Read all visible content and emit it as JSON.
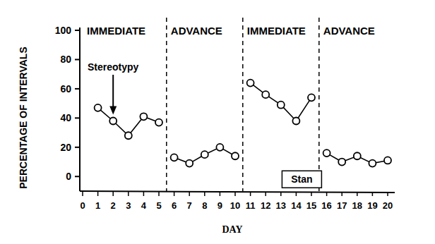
{
  "chart_data": {
    "type": "line",
    "subtitle": "Stan",
    "x_label": "DAY",
    "y_label": "PERCENTAGE OF INTERVALS",
    "x": [
      1,
      2,
      3,
      4,
      5,
      6,
      7,
      8,
      9,
      10,
      11,
      12,
      13,
      14,
      15,
      16,
      17,
      18,
      19,
      20
    ],
    "xlim": [
      0,
      20
    ],
    "xticks": [
      0,
      1,
      2,
      3,
      4,
      5,
      6,
      7,
      8,
      9,
      10,
      11,
      12,
      13,
      14,
      15,
      16,
      17,
      18,
      19,
      20
    ],
    "ylim": [
      -10,
      100
    ],
    "yticks": [
      0,
      20,
      40,
      60,
      80,
      100
    ],
    "grid": false,
    "series": [
      {
        "color": "#000000",
        "marker": "circle",
        "line_style": "solid",
        "values": [
          47,
          38,
          28,
          41,
          37,
          13,
          9,
          15,
          20,
          14,
          64,
          56,
          49,
          38,
          54,
          16,
          10,
          14,
          9,
          11
        ]
      }
    ],
    "phases": [
      {
        "label": "IMMEDIATE",
        "start": 0,
        "end": 5.5
      },
      {
        "label": "ADVANCE",
        "start": 5.5,
        "end": 10.5
      },
      {
        "label": "IMMEDIATE",
        "start": 10.5,
        "end": 15.5
      },
      {
        "label": "ADVANCE",
        "start": 15.5,
        "end": 20
      }
    ],
    "annotations": [
      {
        "text": "Stereotypy",
        "x": 2
      }
    ]
  }
}
